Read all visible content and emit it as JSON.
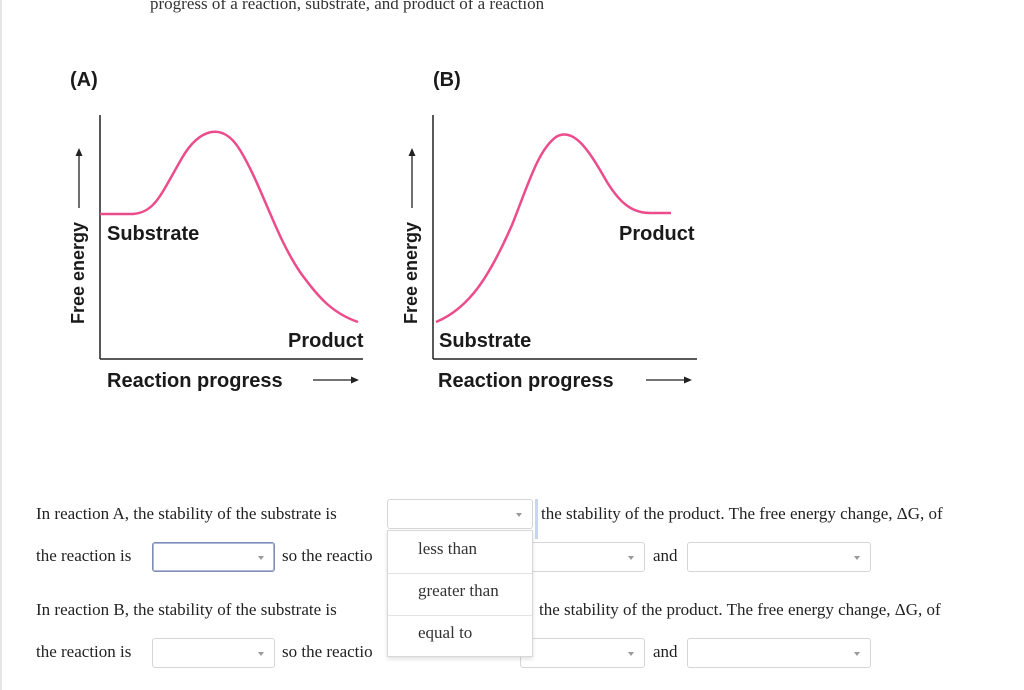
{
  "top_text": "progress of a reaction, substrate, and product of a reaction",
  "figure": {
    "panel_a": {
      "label": "(A)",
      "y_label": "Free energy",
      "x_label": "Reaction progress",
      "start_label": "Substrate",
      "end_label": "Product",
      "curve_color": "#ec4c8c"
    },
    "panel_b": {
      "label": "(B)",
      "y_label": "Free energy",
      "x_label": "Reaction progress",
      "start_label": "Substrate",
      "end_label": "Product",
      "curve_color": "#ec4c8c"
    }
  },
  "questions": {
    "a_line1_prefix": "In reaction A, the stability of the substrate is",
    "a_line1_suffix": "the stability of the product. The free energy change, ΔG, of",
    "a_line2_prefix": "the reaction is",
    "a_line2_mid": "so the reactio",
    "a_line2_and": "and",
    "b_line1_prefix": "In reaction B, the stability of the substrate is",
    "b_line1_suffix": "the stability of the product. The free energy change, ΔG, of",
    "b_line2_prefix": "the reaction is",
    "b_line2_mid": "so the reactio",
    "b_line2_and": "and"
  },
  "dropdown_options": [
    "less than",
    "greater than",
    "equal to"
  ]
}
